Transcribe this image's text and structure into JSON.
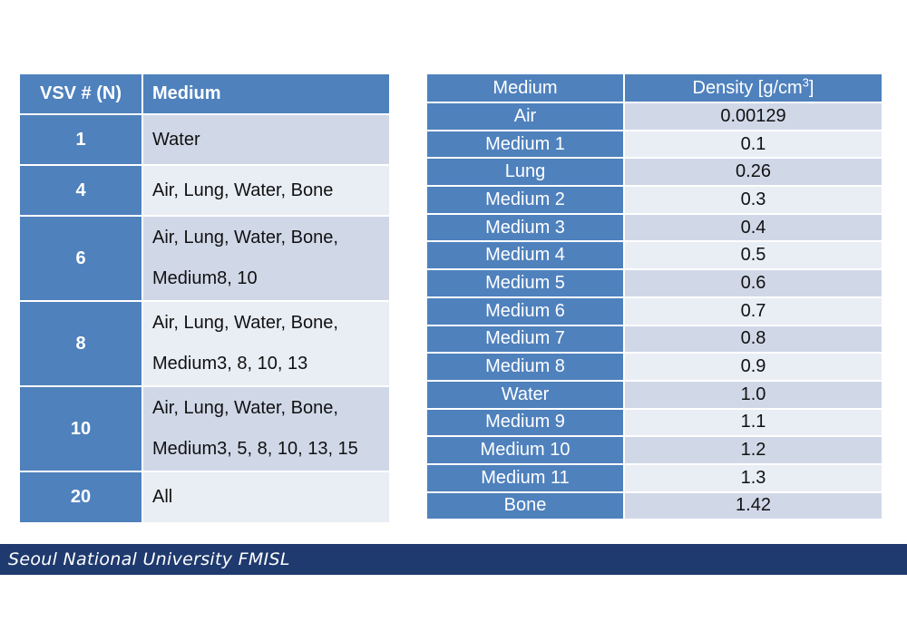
{
  "vsv_table": {
    "headers": [
      "VSV # (N)",
      "Medium"
    ],
    "rows": [
      {
        "n": "1",
        "lines": [
          "Water"
        ]
      },
      {
        "n": "4",
        "lines": [
          "Air, Lung, Water, Bone"
        ]
      },
      {
        "n": "6",
        "lines": [
          "Air, Lung, Water, Bone,",
          "Medium8, 10"
        ]
      },
      {
        "n": "8",
        "lines": [
          "Air, Lung, Water, Bone,",
          "Medium3, 8, 10, 13"
        ]
      },
      {
        "n": "10",
        "lines": [
          "Air, Lung, Water, Bone,",
          "Medium3, 5, 8, 10, 13, 15"
        ]
      },
      {
        "n": "20",
        "lines": [
          "All"
        ]
      }
    ]
  },
  "density_table": {
    "header_medium": "Medium",
    "header_density": "Density [g/cm",
    "header_density_sup": "3",
    "header_density_close": "]",
    "rows": [
      {
        "medium": "Air",
        "density": "0.00129"
      },
      {
        "medium": "Medium 1",
        "density": "0.1"
      },
      {
        "medium": "Lung",
        "density": "0.26"
      },
      {
        "medium": "Medium 2",
        "density": "0.3"
      },
      {
        "medium": "Medium 3",
        "density": "0.4"
      },
      {
        "medium": "Medium 4",
        "density": "0.5"
      },
      {
        "medium": "Medium 5",
        "density": "0.6"
      },
      {
        "medium": "Medium 6",
        "density": "0.7"
      },
      {
        "medium": "Medium 7",
        "density": "0.8"
      },
      {
        "medium": "Medium 8",
        "density": "0.9"
      },
      {
        "medium": "Water",
        "density": "1.0"
      },
      {
        "medium": "Medium 9",
        "density": "1.1"
      },
      {
        "medium": "Medium 10",
        "density": "1.2"
      },
      {
        "medium": "Medium 11",
        "density": "1.3"
      },
      {
        "medium": "Bone",
        "density": "1.42"
      }
    ]
  },
  "footer": {
    "text": "Seoul National University FMISL"
  },
  "colors": {
    "header_blue": "#4f81bd",
    "row_dark": "#d0d8e8",
    "row_light": "#e9edf4",
    "footer_navy": "#1f3a6e"
  }
}
